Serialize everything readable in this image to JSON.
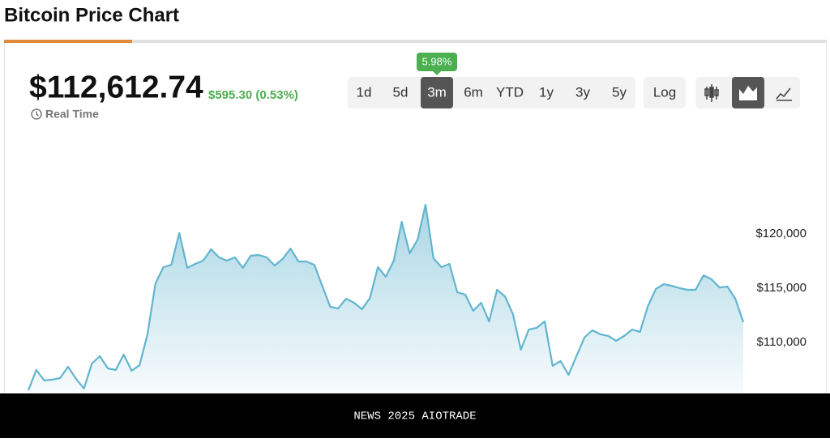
{
  "header": {
    "title": "Bitcoin Price Chart"
  },
  "quote": {
    "price": "$112,612.74",
    "change": "$595.30 (0.53%)",
    "status": "Real Time"
  },
  "ranges": {
    "buttons": [
      "1d",
      "5d",
      "3m",
      "6m",
      "YTD",
      "1y",
      "3y",
      "5y"
    ],
    "active": 2,
    "badge": "5.98%"
  },
  "scale_button": "Log",
  "chart_data": {
    "type": "area",
    "color": "#62b5cf",
    "values": [
      105600,
      107460,
      106490,
      106570,
      106720,
      107760,
      106640,
      105750,
      108060,
      108730,
      107610,
      107460,
      108880,
      107390,
      107910,
      110750,
      115450,
      116940,
      117160,
      120080,
      116870,
      117240,
      117540,
      118580,
      117840,
      117540,
      117840,
      116870,
      117990,
      118060,
      117840,
      117090,
      117690,
      118660,
      117460,
      117460,
      117160,
      115220,
      113280,
      113130,
      114030,
      113660,
      113060,
      114100,
      116940,
      116050,
      117540,
      121120,
      118210,
      119480,
      122690,
      117760,
      116940,
      117240,
      114630,
      114400,
      112910,
      113660,
      111940,
      114850,
      114250,
      112610,
      109330,
      111190,
      111340,
      111940,
      107840,
      108280,
      107010,
      108730,
      110450,
      111120,
      110750,
      110600,
      110150,
      110600,
      111190,
      110970,
      113360,
      114930,
      115370,
      115220,
      115000,
      114850,
      114850,
      116190,
      115820,
      115070,
      115150,
      114030,
      111870
    ],
    "ylim": [
      105000,
      125000
    ],
    "yticks": [
      {
        "value": 110000,
        "label": "$110,000"
      },
      {
        "value": 115000,
        "label": "$115,000"
      },
      {
        "value": 120000,
        "label": "$120,000"
      }
    ]
  },
  "footer": {
    "text": "NEWS 2025 AIOTRADE"
  }
}
